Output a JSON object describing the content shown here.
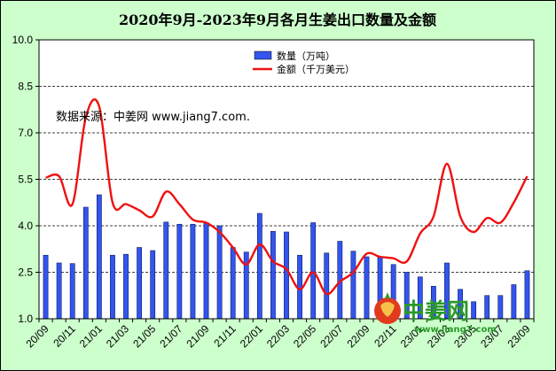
{
  "chart_data": {
    "type": "bar",
    "title": "2020年9月-2023年9月各月生姜出口数量及金额",
    "annotation": "数据来源：中姜网 www.jiang7.com.",
    "xlabel": "",
    "ylabel": "",
    "ylim": [
      1.0,
      10.0
    ],
    "yticks": [
      "1.0",
      "2.5",
      "4.0",
      "5.5",
      "7.0",
      "8.5",
      "10.0"
    ],
    "ytick_values": [
      1.0,
      2.5,
      4.0,
      5.5,
      7.0,
      8.5,
      10.0
    ],
    "grid": "horizontal dashed",
    "legend_position": "top-center",
    "x_tick_labels": [
      "20/09",
      "20/11",
      "21/01",
      "21/03",
      "21/05",
      "21/07",
      "21/09",
      "21/11",
      "22/01",
      "22/03",
      "22/05",
      "22/07",
      "22/09",
      "22/11",
      "23/01",
      "23/03",
      "23/05",
      "23/07",
      "23/09"
    ],
    "categories": [
      "20/09",
      "20/10",
      "20/11",
      "20/12",
      "21/01",
      "21/02",
      "21/03",
      "21/04",
      "21/05",
      "21/06",
      "21/07",
      "21/08",
      "21/09",
      "21/10",
      "21/11",
      "21/12",
      "22/01",
      "22/02",
      "22/03",
      "22/04",
      "22/05",
      "22/06",
      "22/07",
      "22/08",
      "22/09",
      "22/10",
      "22/11",
      "22/12",
      "23/01",
      "23/02",
      "23/03",
      "23/04",
      "23/05",
      "23/06",
      "23/07",
      "23/08",
      "23/09"
    ],
    "series": [
      {
        "name": "数量（万吨）",
        "type": "bar",
        "color": "#3355ee",
        "values": [
          3.05,
          2.8,
          2.78,
          4.6,
          5.0,
          3.05,
          3.08,
          3.3,
          3.2,
          4.12,
          4.05,
          4.05,
          4.1,
          4.0,
          3.3,
          3.15,
          4.4,
          3.82,
          3.8,
          3.05,
          4.1,
          3.12,
          3.5,
          3.18,
          3.0,
          3.0,
          2.75,
          2.5,
          2.35,
          2.05,
          2.8,
          1.95,
          1.55,
          1.75,
          1.75,
          2.1,
          2.55
        ]
      },
      {
        "name": "金额（千万美元）",
        "type": "line",
        "color": "#ee1111",
        "values": [
          5.55,
          5.6,
          4.7,
          7.5,
          7.85,
          4.75,
          4.7,
          4.5,
          4.3,
          5.1,
          4.7,
          4.2,
          4.1,
          3.8,
          3.3,
          2.75,
          3.4,
          2.85,
          2.6,
          1.95,
          2.5,
          1.8,
          2.2,
          2.5,
          3.1,
          3.0,
          2.95,
          2.85,
          3.75,
          4.3,
          6.0,
          4.3,
          3.8,
          4.25,
          4.1,
          4.75,
          5.6
        ]
      }
    ]
  },
  "watermark": {
    "text": "中姜网",
    "url": "www.jiang7.com"
  }
}
